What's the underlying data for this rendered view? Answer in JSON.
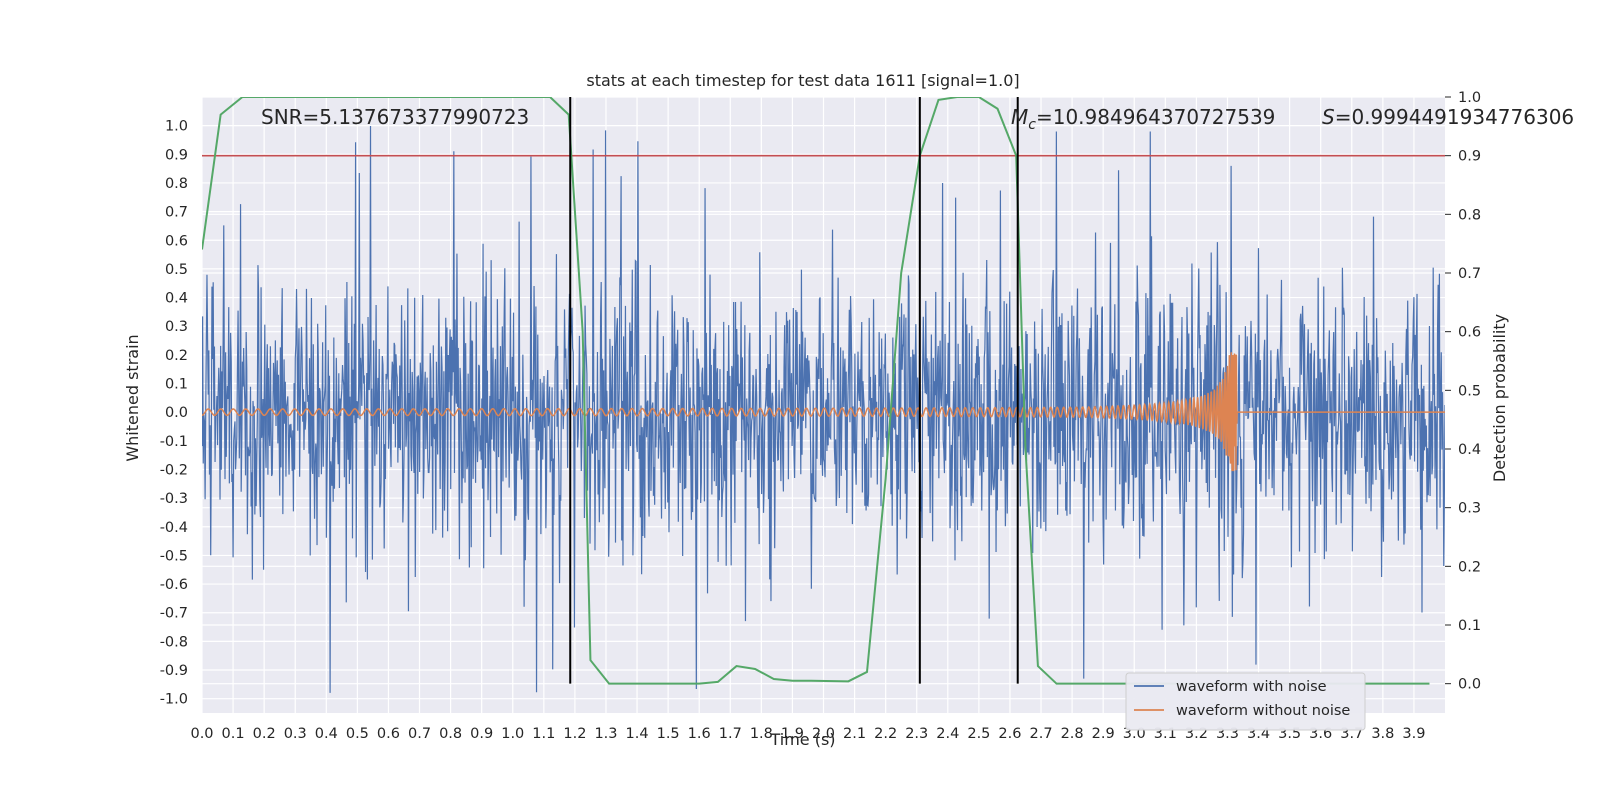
{
  "chart_data": {
    "type": "line",
    "title": "stats at each timestep for test data 1611 [signal=1.0]",
    "xlabel": "Time (s)",
    "ylabel": "Whitened strain",
    "y2label": "Detection probability",
    "xlim": [
      0.0,
      4.0
    ],
    "ylim": [
      -1.05,
      1.1
    ],
    "y2lim": [
      -0.05,
      1.0
    ],
    "xticks": [
      "0.0",
      "0.1",
      "0.2",
      "0.3",
      "0.4",
      "0.5",
      "0.6",
      "0.7",
      "0.8",
      "0.9",
      "1.0",
      "1.1",
      "1.2",
      "1.3",
      "1.4",
      "1.5",
      "1.6",
      "1.7",
      "1.8",
      "1.9",
      "2.0",
      "2.1",
      "2.2",
      "2.3",
      "2.4",
      "2.5",
      "2.6",
      "2.7",
      "2.8",
      "2.9",
      "3.0",
      "3.1",
      "3.2",
      "3.3",
      "3.4",
      "3.5",
      "3.6",
      "3.7",
      "3.8",
      "3.9"
    ],
    "yticks": [
      "1.0",
      "0.9",
      "0.8",
      "0.7",
      "0.6",
      "0.5",
      "0.4",
      "0.3",
      "0.2",
      "0.1",
      "0.0",
      "-0.1",
      "-0.2",
      "-0.3",
      "-0.4",
      "-0.5",
      "-0.6",
      "-0.7",
      "-0.8",
      "-0.9",
      "-1.0"
    ],
    "y2ticks": [
      "1.0",
      "0.9",
      "0.8",
      "0.7",
      "0.6",
      "0.5",
      "0.4",
      "0.3",
      "0.2",
      "0.1",
      "0.0"
    ],
    "grid": true,
    "legend_position": "lower-right",
    "annotations": {
      "snr": "SNR=5.137673377990723",
      "mc_symbol": "M",
      "mc_sub": "c",
      "mc_value": "=10.984964370727539",
      "s_symbol": "S",
      "s_value": "=0.9994491934776306"
    },
    "threshold": {
      "value": 0.9,
      "axis": "y2",
      "color": "#c44e52"
    },
    "vertical_lines": {
      "x": [
        1.185,
        2.31,
        2.625
      ],
      "color": "#000000"
    },
    "series": [
      {
        "name": "waveform with noise",
        "color": "#4c72b0",
        "description_kind": "noise",
        "amplitude_range": [
          -0.98,
          1.0
        ]
      },
      {
        "name": "waveform without noise",
        "color": "#dd8452",
        "kind": "chirp",
        "merger_time": 3.33,
        "peak_amplitude": 0.21
      },
      {
        "color": "#55a868",
        "axis": "y2",
        "x": [
          0.0,
          0.06,
          0.13,
          0.2,
          0.5,
          0.8,
          1.12,
          1.18,
          1.225,
          1.25,
          1.31,
          1.45,
          1.6,
          1.66,
          1.72,
          1.78,
          1.84,
          1.9,
          1.96,
          2.08,
          2.14,
          2.2,
          2.25,
          2.31,
          2.37,
          2.43,
          2.5,
          2.56,
          2.62,
          2.65,
          2.69,
          2.75,
          2.9,
          3.2,
          3.6,
          3.95
        ],
        "y": [
          0.74,
          0.97,
          1.0,
          1.0,
          1.0,
          1.0,
          1.0,
          0.97,
          0.6,
          0.04,
          0.0,
          0.0,
          0.0,
          0.003,
          0.03,
          0.025,
          0.008,
          0.005,
          0.005,
          0.004,
          0.02,
          0.35,
          0.7,
          0.9,
          0.995,
          1.0,
          1.0,
          0.98,
          0.9,
          0.4,
          0.03,
          0.0,
          0.0,
          0.0,
          0.0,
          0.0
        ]
      }
    ]
  }
}
